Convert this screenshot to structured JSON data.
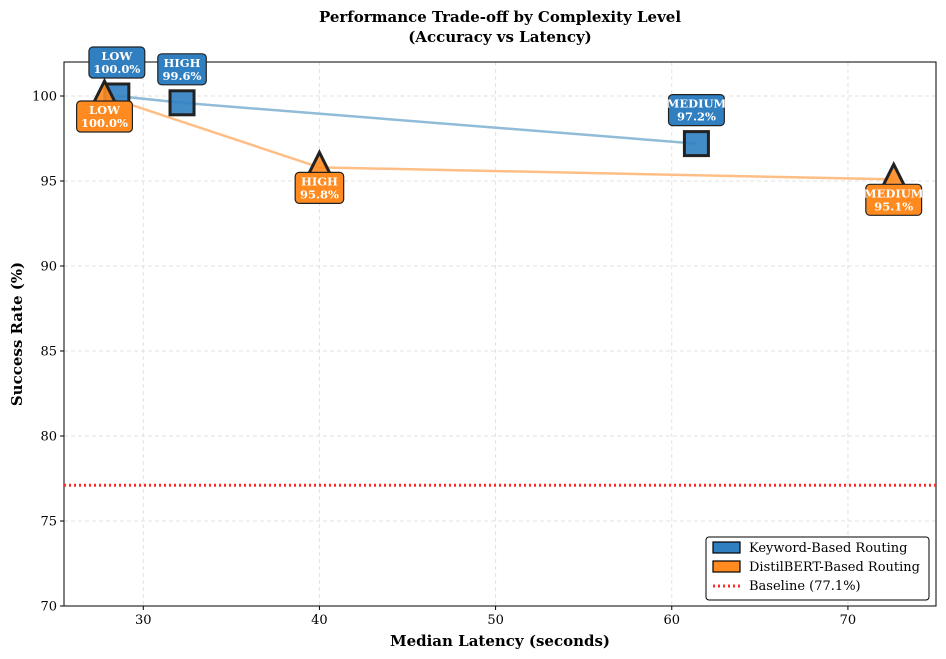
{
  "chart_data": {
    "type": "scatter",
    "title_line1": "Performance Trade-off by Complexity Level",
    "title_line2": "(Accuracy vs Latency)",
    "xlabel": "Median Latency (seconds)",
    "ylabel": "Success Rate (%)",
    "xlim": [
      25.5,
      75
    ],
    "ylim": [
      70,
      102
    ],
    "xticks": [
      30,
      40,
      50,
      60,
      70
    ],
    "yticks": [
      70,
      75,
      80,
      85,
      90,
      95,
      100
    ],
    "grid": true,
    "legend_position": "lower-right",
    "baseline": {
      "name": "Baseline (77.1%)",
      "value": 77.1,
      "color": "#ff2a2a"
    },
    "series": [
      {
        "name": "Keyword-Based Routing",
        "color": "#2f7fc1",
        "line_color": "#91bcd8",
        "marker": "square",
        "points": [
          {
            "level": "LOW",
            "label": "100.0%",
            "x": 28.5,
            "y": 100.0
          },
          {
            "level": "HIGH",
            "label": "99.6%",
            "x": 32.2,
            "y": 99.6
          },
          {
            "level": "MEDIUM",
            "label": "97.2%",
            "x": 61.4,
            "y": 97.2
          }
        ]
      },
      {
        "name": "DistilBERT-Based Routing",
        "color": "#ff8a1f",
        "line_color": "#ffbe85",
        "marker": "triangle",
        "points": [
          {
            "level": "LOW",
            "label": "100.0%",
            "x": 27.8,
            "y": 100.0
          },
          {
            "level": "HIGH",
            "label": "95.8%",
            "x": 40.0,
            "y": 95.8
          },
          {
            "level": "MEDIUM",
            "label": "95.1%",
            "x": 72.6,
            "y": 95.1
          }
        ]
      }
    ]
  }
}
